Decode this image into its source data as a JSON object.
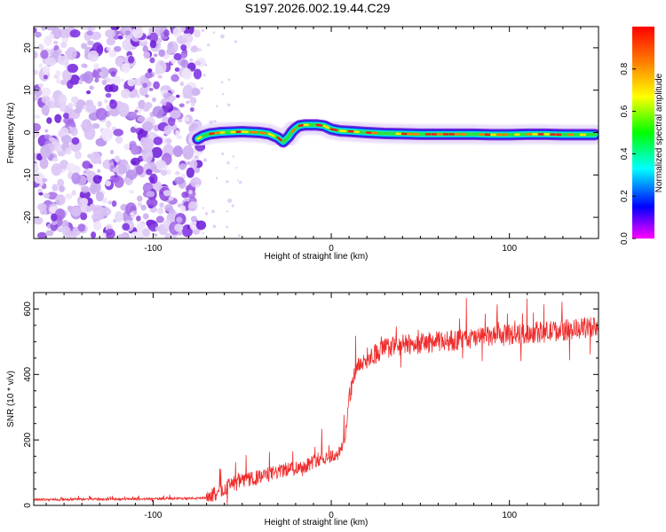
{
  "title": "S197.2026.002.19.44.C29",
  "chart_data": [
    {
      "type": "heatmap",
      "panel": "top",
      "xlabel": "Height of straight line (km)",
      "ylabel": "Frequency (Hz)",
      "xlim": [
        -167,
        150
      ],
      "ylim": [
        -25,
        25
      ],
      "xticks": [
        -100,
        0,
        100
      ],
      "xtick_labels": [
        "-100",
        "0",
        "100"
      ],
      "yticks": [
        -20,
        -10,
        0,
        10,
        20
      ],
      "ytick_labels": [
        "-20",
        "-10",
        "0",
        "10",
        "20"
      ],
      "noise_region_x": [
        -167,
        -73
      ],
      "signal_trace": {
        "x": [
          -75,
          -72,
          -68,
          -62,
          -56,
          -50,
          -45,
          -40,
          -35,
          -30,
          -27,
          -24,
          -22,
          -20,
          -18,
          -15,
          -12,
          -8,
          -4,
          0,
          5,
          10,
          20,
          30,
          40,
          50,
          60,
          70,
          80,
          90,
          100,
          110,
          120,
          130,
          140,
          148
        ],
        "y": [
          -1.5,
          -0.8,
          -0.3,
          0.0,
          0.1,
          0.2,
          0.1,
          0.0,
          -0.3,
          -1.2,
          -2.2,
          -1.0,
          0.2,
          1.0,
          1.6,
          1.8,
          1.8,
          1.8,
          1.6,
          0.8,
          0.4,
          0.3,
          0.0,
          -0.2,
          -0.3,
          -0.4,
          -0.4,
          -0.4,
          -0.4,
          -0.5,
          -0.5,
          -0.4,
          -0.4,
          -0.5,
          -0.5,
          -0.5
        ]
      }
    },
    {
      "type": "colorbar",
      "label": "Normalized spectral amplitude",
      "lim": [
        0,
        1
      ],
      "ticks": [
        0.0,
        0.2,
        0.4,
        0.6,
        0.8
      ],
      "tick_labels": [
        "0.0",
        "0.2",
        "0.4",
        "0.6",
        "0.8"
      ]
    },
    {
      "type": "line",
      "panel": "bottom",
      "xlabel": "Height of straight line (km)",
      "ylabel": "SNR (10 * v/v)",
      "xlim": [
        -167,
        150
      ],
      "ylim": [
        0,
        650
      ],
      "xticks": [
        -100,
        0,
        100
      ],
      "xtick_labels": [
        "-100",
        "0",
        "100"
      ],
      "yticks": [
        0,
        200,
        400,
        600
      ],
      "ytick_labels": [
        "0",
        "200",
        "400",
        "600"
      ],
      "series": [
        {
          "name": "SNR",
          "color": "#ef2d2d",
          "baseline_x": [
            -167,
            -100,
            -70,
            -62,
            -55,
            -45,
            -35,
            -25,
            -15,
            -8,
            0,
            5,
            8,
            10,
            13,
            16,
            20,
            30,
            40,
            60,
            80,
            100,
            120,
            140,
            150
          ],
          "baseline_y": [
            18,
            20,
            22,
            45,
            70,
            80,
            95,
            110,
            120,
            140,
            150,
            160,
            220,
            330,
            400,
            430,
            450,
            480,
            490,
            500,
            510,
            520,
            530,
            540,
            550
          ]
        }
      ]
    }
  ],
  "colors": {
    "line": "#ef2d2d",
    "noise_light": "#cdb3f0",
    "noise_dark": "#6a16d6",
    "colormap": [
      "#ff0000",
      "#ff8000",
      "#ffff00",
      "#00ff00",
      "#00ffff",
      "#0000ff",
      "#ff00ff"
    ]
  }
}
